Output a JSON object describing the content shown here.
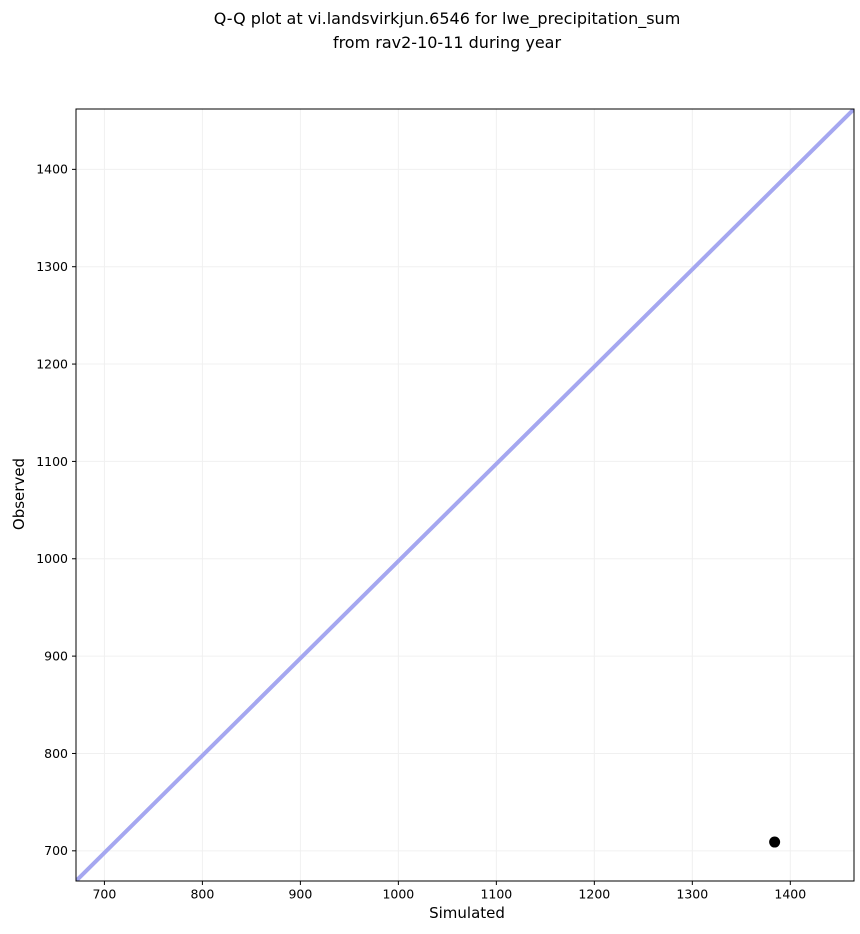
{
  "chart_data": {
    "type": "scatter",
    "title": "Q-Q plot at vi.landsvirkjun.6546 for lwe_precipitation_sum\nfrom rav2-10-11 during year",
    "xlabel": "Simulated",
    "ylabel": "Observed",
    "xlim": [
      671,
      1465
    ],
    "ylim": [
      669,
      1462
    ],
    "xticks": [
      700,
      800,
      900,
      1000,
      1100,
      1200,
      1300,
      1400
    ],
    "yticks": [
      700,
      800,
      900,
      1000,
      1100,
      1200,
      1300,
      1400
    ],
    "grid": true,
    "legend": null,
    "points": [
      {
        "x": 1384,
        "y": 709
      }
    ],
    "reference_line": {
      "x": [
        671,
        1465
      ],
      "y": [
        669,
        1462
      ]
    },
    "colors": {
      "point": "#000000",
      "reference_line": "#a5a7f0",
      "grid": "#f0f0f0",
      "axis": "#000000",
      "text": "#000000"
    }
  }
}
